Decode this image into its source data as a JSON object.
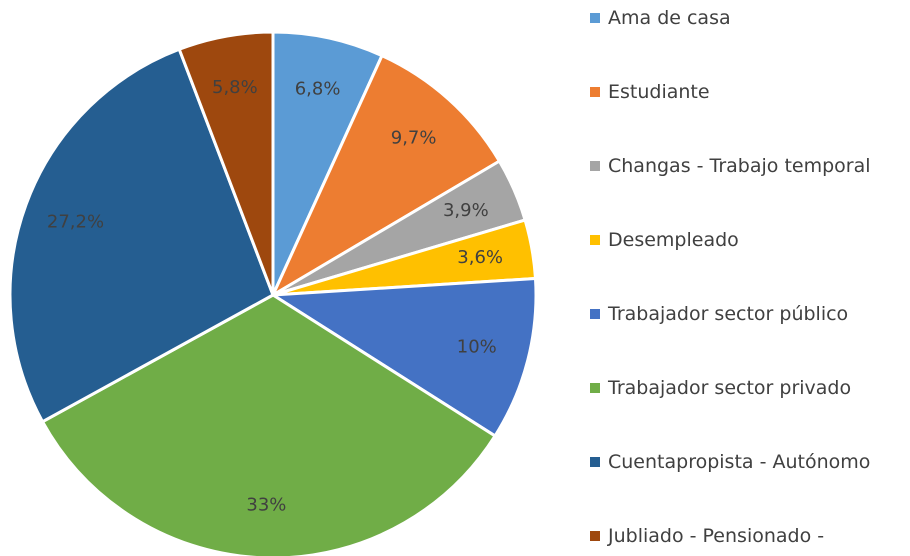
{
  "chart_data": {
    "type": "pie",
    "categories": [
      "Ama de casa",
      "Estudiante",
      "Changas - Trabajo temporal",
      "Desempleado",
      "Trabajador sector público",
      "Trabajador sector privado",
      "Cuentapropista - Autónomo",
      "Jubliado - Pensionado -"
    ],
    "values": [
      6.8,
      9.7,
      3.9,
      3.6,
      10,
      33,
      27.2,
      5.8
    ],
    "value_labels": [
      "6,8%",
      "9,7%",
      "3,9%",
      "3,6%",
      "10%",
      "33%",
      "27,2%",
      "5,8%"
    ],
    "colors": [
      "#5b9bd5",
      "#ed7d31",
      "#a5a5a5",
      "#ffc000",
      "#4472c4",
      "#70ad47",
      "#255e91",
      "#9e480e"
    ],
    "legend": "right"
  }
}
